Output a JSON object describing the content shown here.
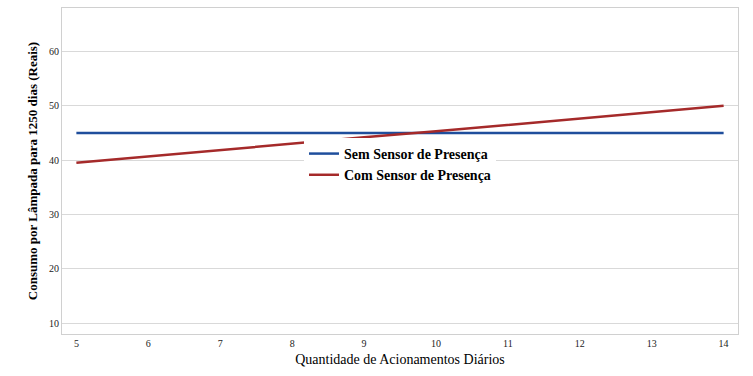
{
  "chart_data": {
    "type": "line",
    "x_label": "Quantidade de Acionamentos Diários",
    "y_label": "Consumo por Lâmpada para 1250 dias (Reais)",
    "x": [
      5,
      6,
      7,
      8,
      9,
      10,
      11,
      12,
      13,
      14
    ],
    "series": [
      {
        "name": "Sem Sensor de Presença",
        "color": "#1f4e9c",
        "values": [
          45,
          45,
          45,
          45,
          45,
          45,
          45,
          45,
          45,
          45
        ]
      },
      {
        "name": "Com Sensor de Presença",
        "color": "#a52a2a",
        "values": [
          39.5,
          40.7,
          41.8,
          43.0,
          44.2,
          45.3,
          46.5,
          47.7,
          48.8,
          50.0
        ]
      }
    ],
    "xlim": [
      4.8,
      14.2
    ],
    "xticks": [
      5,
      6,
      7,
      8,
      9,
      10,
      11,
      12,
      13,
      14
    ],
    "ylim": [
      8,
      68
    ],
    "yticks": [
      10,
      20,
      30,
      40,
      50,
      60
    ],
    "grid": true,
    "legend": "center"
  }
}
